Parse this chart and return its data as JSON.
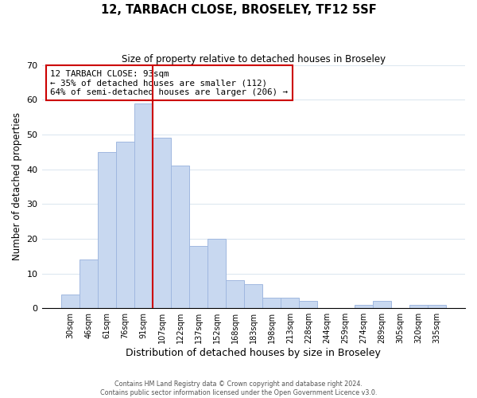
{
  "title": "12, TARBACH CLOSE, BROSELEY, TF12 5SF",
  "subtitle": "Size of property relative to detached houses in Broseley",
  "xlabel": "Distribution of detached houses by size in Broseley",
  "ylabel": "Number of detached properties",
  "bar_color": "#c8d8f0",
  "bar_edge_color": "#a0b8e0",
  "highlight_line_color": "#cc0000",
  "categories": [
    "30sqm",
    "46sqm",
    "61sqm",
    "76sqm",
    "91sqm",
    "107sqm",
    "122sqm",
    "137sqm",
    "152sqm",
    "168sqm",
    "183sqm",
    "198sqm",
    "213sqm",
    "228sqm",
    "244sqm",
    "259sqm",
    "274sqm",
    "289sqm",
    "305sqm",
    "320sqm",
    "335sqm"
  ],
  "values": [
    4,
    14,
    45,
    48,
    59,
    49,
    41,
    18,
    20,
    8,
    7,
    3,
    3,
    2,
    0,
    0,
    1,
    2,
    0,
    1,
    1
  ],
  "ylim": [
    0,
    70
  ],
  "yticks": [
    0,
    10,
    20,
    30,
    40,
    50,
    60,
    70
  ],
  "annotation_title": "12 TARBACH CLOSE: 93sqm",
  "annotation_line1": "← 35% of detached houses are smaller (112)",
  "annotation_line2": "64% of semi-detached houses are larger (206) →",
  "footer_line1": "Contains HM Land Registry data © Crown copyright and database right 2024.",
  "footer_line2": "Contains public sector information licensed under the Open Government Licence v3.0.",
  "background_color": "#ffffff",
  "grid_color": "#dde8f0"
}
